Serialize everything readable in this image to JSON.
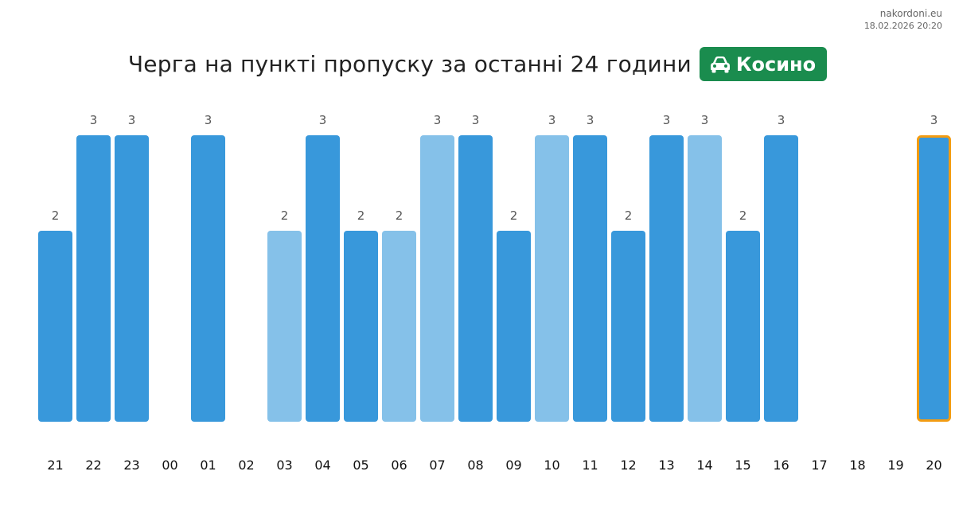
{
  "site": "nakordoni.eu",
  "timestamp": "18.02.2026 20:20",
  "title": "Черга на пункті пропуску за останні 24 години",
  "badge": {
    "icon": "car-icon",
    "label": "Косино",
    "color": "#1a8c4e"
  },
  "colors": {
    "bar": "#3898db",
    "bar_light": "#85c1e9",
    "highlight_border": "#f39c12"
  },
  "chart_data": {
    "type": "bar",
    "title": "Черга на пункті пропуску за останні 24 години",
    "xlabel": "",
    "ylabel": "",
    "ylim": [
      0,
      3
    ],
    "grid": false,
    "categories": [
      "21",
      "22",
      "23",
      "00",
      "01",
      "02",
      "03",
      "04",
      "05",
      "06",
      "07",
      "08",
      "09",
      "10",
      "11",
      "12",
      "13",
      "14",
      "15",
      "16",
      "17",
      "18",
      "19",
      "20"
    ],
    "values": [
      2,
      3,
      3,
      null,
      3,
      null,
      2,
      3,
      2,
      2,
      3,
      3,
      2,
      3,
      3,
      2,
      3,
      3,
      2,
      3,
      null,
      null,
      null,
      3
    ],
    "light": [
      false,
      false,
      false,
      false,
      false,
      false,
      true,
      false,
      false,
      true,
      true,
      false,
      false,
      true,
      false,
      false,
      false,
      true,
      false,
      false,
      false,
      false,
      false,
      false
    ],
    "highlighted": [
      false,
      false,
      false,
      false,
      false,
      false,
      false,
      false,
      false,
      false,
      false,
      false,
      false,
      false,
      false,
      false,
      false,
      false,
      false,
      false,
      false,
      false,
      false,
      true
    ],
    "data_labels": [
      "2",
      "3",
      "3",
      "",
      "3",
      "",
      "2",
      "3",
      "2",
      "2",
      "3",
      "3",
      "2",
      "3",
      "3",
      "2",
      "3",
      "3",
      "2",
      "3",
      "",
      "",
      "",
      "3"
    ]
  }
}
